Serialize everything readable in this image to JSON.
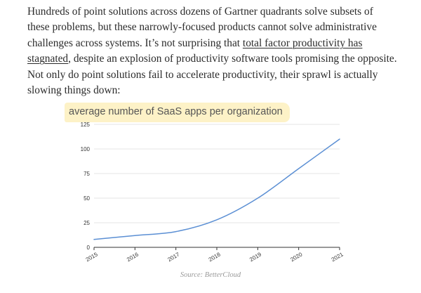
{
  "article": {
    "text_before_link": "Hundreds of point solutions across dozens of Gartner quadrants solve subsets of these problems, but these narrowly-focused products cannot solve administrative challenges across systems. It’s not surprising that ",
    "link_text": "total factor productivity has stagnated",
    "text_after_link": ", despite an explosion of productivity software tools promising the opposite. Not only do point solutions fail to accelerate productivity, their sprawl is actually slowing things down:"
  },
  "figure": {
    "caption": "Source: BetterCloud"
  },
  "chart_data": {
    "type": "line",
    "title": "average number of SaaS apps per organization",
    "xlabel": "",
    "ylabel": "",
    "x": [
      "2015",
      "2016",
      "2017",
      "2018",
      "2019",
      "2020",
      "2021"
    ],
    "xlim": [
      2015,
      2021
    ],
    "ylim": [
      0,
      125
    ],
    "yticks": [
      0,
      25,
      50,
      75,
      100,
      125
    ],
    "grid": true,
    "legend": "none",
    "series": [
      {
        "values": [
          8,
          12,
          16,
          28,
          50,
          80,
          110
        ],
        "color": "#5b8fd4"
      }
    ]
  }
}
